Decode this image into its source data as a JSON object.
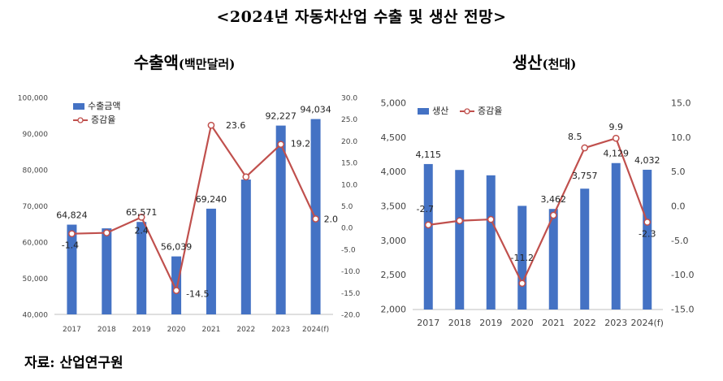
{
  "page": {
    "title": "<2024년 자동차산업 수출 및 생산 전망>",
    "source": "자료: 산업연구원"
  },
  "colors": {
    "bar": "#4472C4",
    "line": "#C0504D",
    "marker_fill": "#ffffff",
    "axis": "#bfbfbf"
  },
  "chart_data": [
    {
      "type": "bar",
      "title": "수출액",
      "unit": "(백만달러)",
      "categories": [
        "2017",
        "2018",
        "2019",
        "2020",
        "2021",
        "2022",
        "2023",
        "2024(f)"
      ],
      "legend_position": "top-left",
      "series": [
        {
          "name": "수출금액",
          "type": "bar",
          "axis": "left",
          "values": [
            64824,
            63800,
            65571,
            56039,
            69240,
            77300,
            92227,
            94034
          ],
          "labels": [
            "64,824",
            "",
            "65,571",
            "56,039",
            "69,240",
            "",
            "92,227",
            "94,034"
          ]
        },
        {
          "name": "증감율",
          "type": "line",
          "axis": "right",
          "values": [
            -1.4,
            -1.2,
            2.4,
            -14.5,
            23.6,
            11.7,
            19.2,
            2.0
          ],
          "labels": [
            "-1.4",
            "",
            "2.4",
            "-14.5",
            "23.6",
            "",
            "19.2",
            "2.0"
          ]
        }
      ],
      "y_left": {
        "min": 40000,
        "max": 100000,
        "ticks": [
          "40,000",
          "50,000",
          "60,000",
          "70,000",
          "80,000",
          "90,000",
          "100,000"
        ]
      },
      "y_right": {
        "min": -20,
        "max": 30,
        "ticks": [
          "-20.0",
          "-15.0",
          "-10.0",
          "-5.0",
          "0.0",
          "5.0",
          "10.0",
          "15.0",
          "20.0",
          "25.0",
          "30.0"
        ]
      },
      "grid": false
    },
    {
      "type": "bar",
      "title": "생산",
      "unit": "(천대)",
      "categories": [
        "2017",
        "2018",
        "2019",
        "2020",
        "2021",
        "2022",
        "2023",
        "2024(f)"
      ],
      "legend_position": "top-left",
      "series": [
        {
          "name": "생산",
          "type": "bar",
          "axis": "left",
          "values": [
            4115,
            4029,
            3951,
            3507,
            3462,
            3757,
            4129,
            4032
          ],
          "labels": [
            "4,115",
            "",
            "",
            "",
            "3,462",
            "3,757",
            "4,129",
            "4,032"
          ]
        },
        {
          "name": "증감율",
          "type": "line",
          "axis": "right",
          "values": [
            -2.7,
            -2.1,
            -1.9,
            -11.2,
            -1.3,
            8.5,
            9.9,
            -2.3
          ],
          "labels": [
            "-2.7",
            "",
            "",
            "-11.2",
            "",
            "8.5",
            "9.9",
            "-2.3"
          ]
        }
      ],
      "y_left": {
        "min": 2000,
        "max": 5000,
        "ticks": [
          "2,000",
          "2,500",
          "3,000",
          "3,500",
          "4,000",
          "4,500",
          "5,000"
        ]
      },
      "y_right": {
        "min": -15,
        "max": 15,
        "ticks": [
          "-15.0",
          "-10.0",
          "-5.0",
          "0.0",
          "5.0",
          "10.0",
          "15.0"
        ]
      },
      "grid": false
    }
  ]
}
